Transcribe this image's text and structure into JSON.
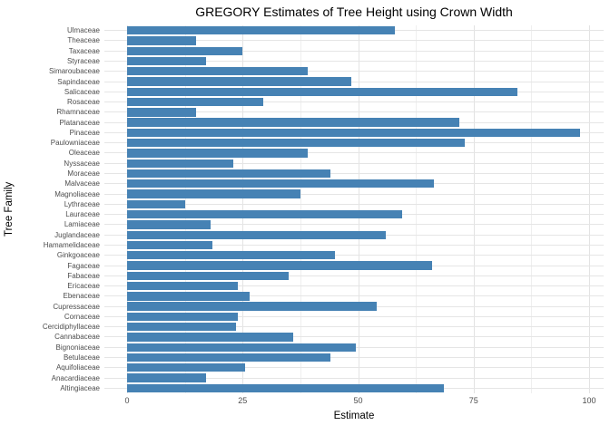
{
  "chart_data": {
    "type": "bar",
    "orientation": "horizontal",
    "title": "GREGORY Estimates of Tree Height using Crown Width",
    "xlabel": "Estimate",
    "ylabel": "Tree Family",
    "xlim": [
      0,
      100
    ],
    "x_ticks": [
      0,
      25,
      50,
      75,
      100
    ],
    "x_minor_gridlines": [
      12.5,
      37.5,
      62.5,
      87.5
    ],
    "grid": true,
    "legend": "none",
    "bar_color": "#4682B4",
    "major_gridline_color": "#e3e3e3",
    "minor_gridline_color": "#efefef",
    "categories": [
      "Ulmaceae",
      "Theaceae",
      "Taxaceae",
      "Styraceae",
      "Simaroubaceae",
      "Sapindaceae",
      "Salicaceae",
      "Rosaceae",
      "Rhamnaceae",
      "Platanaceae",
      "Pinaceae",
      "Paulowniaceae",
      "Oleaceae",
      "Nyssaceae",
      "Moraceae",
      "Malvaceae",
      "Magnoliaceae",
      "Lythraceae",
      "Lauraceae",
      "Lamiaceae",
      "Juglandaceae",
      "Hamamelidaceae",
      "Ginkgoaceae",
      "Fagaceae",
      "Fabaceae",
      "Ericaceae",
      "Ebenaceae",
      "Cupressaceae",
      "Cornaceae",
      "Cercidiphyllaceae",
      "Cannabaceae",
      "Bignoniaceae",
      "Betulaceae",
      "Aquifoliaceae",
      "Anacardiaceae",
      "Altingiaceae"
    ],
    "values": [
      58,
      15,
      25,
      17,
      39,
      48.5,
      84.5,
      29.5,
      15,
      72,
      98,
      73,
      39,
      23,
      44,
      66.5,
      37.5,
      12.5,
      59.5,
      18,
      56,
      18.5,
      45,
      66,
      35,
      24,
      26.5,
      54,
      24,
      23.5,
      36,
      49.5,
      44,
      25.5,
      17,
      68.5
    ]
  }
}
